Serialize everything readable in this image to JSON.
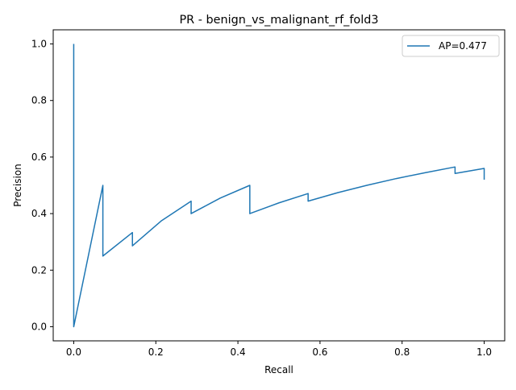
{
  "chart_data": {
    "type": "line",
    "title": "PR - benign_vs_malignant_rf_fold3",
    "xlabel": "Recall",
    "ylabel": "Precision",
    "xlim": [
      -0.05,
      1.05
    ],
    "ylim": [
      -0.05,
      1.05
    ],
    "xticks": [
      0.0,
      0.2,
      0.4,
      0.6,
      0.8,
      1.0
    ],
    "xtick_labels": [
      "0.0",
      "0.2",
      "0.4",
      "0.6",
      "0.8",
      "1.0"
    ],
    "yticks": [
      0.0,
      0.2,
      0.4,
      0.6,
      0.8,
      1.0
    ],
    "ytick_labels": [
      "0.0",
      "0.2",
      "0.4",
      "0.6",
      "0.8",
      "1.0"
    ],
    "grid": false,
    "legend_position": "top-right",
    "series": [
      {
        "name": "AP=0.477",
        "color": "#1f77b4",
        "points": [
          [
            1.0,
            0.52
          ],
          [
            1.0,
            0.56
          ],
          [
            0.929,
            0.542
          ],
          [
            0.929,
            0.565
          ],
          [
            0.857,
            0.545
          ],
          [
            0.786,
            0.524
          ],
          [
            0.714,
            0.5
          ],
          [
            0.643,
            0.474
          ],
          [
            0.571,
            0.444
          ],
          [
            0.571,
            0.471
          ],
          [
            0.5,
            0.438
          ],
          [
            0.429,
            0.4
          ],
          [
            0.429,
            0.5
          ],
          [
            0.357,
            0.455
          ],
          [
            0.286,
            0.4
          ],
          [
            0.286,
            0.444
          ],
          [
            0.214,
            0.375
          ],
          [
            0.143,
            0.286
          ],
          [
            0.143,
            0.333
          ],
          [
            0.071,
            0.25
          ],
          [
            0.071,
            0.5
          ],
          [
            0.0,
            0.0
          ],
          [
            0.0,
            1.0
          ]
        ]
      }
    ]
  }
}
